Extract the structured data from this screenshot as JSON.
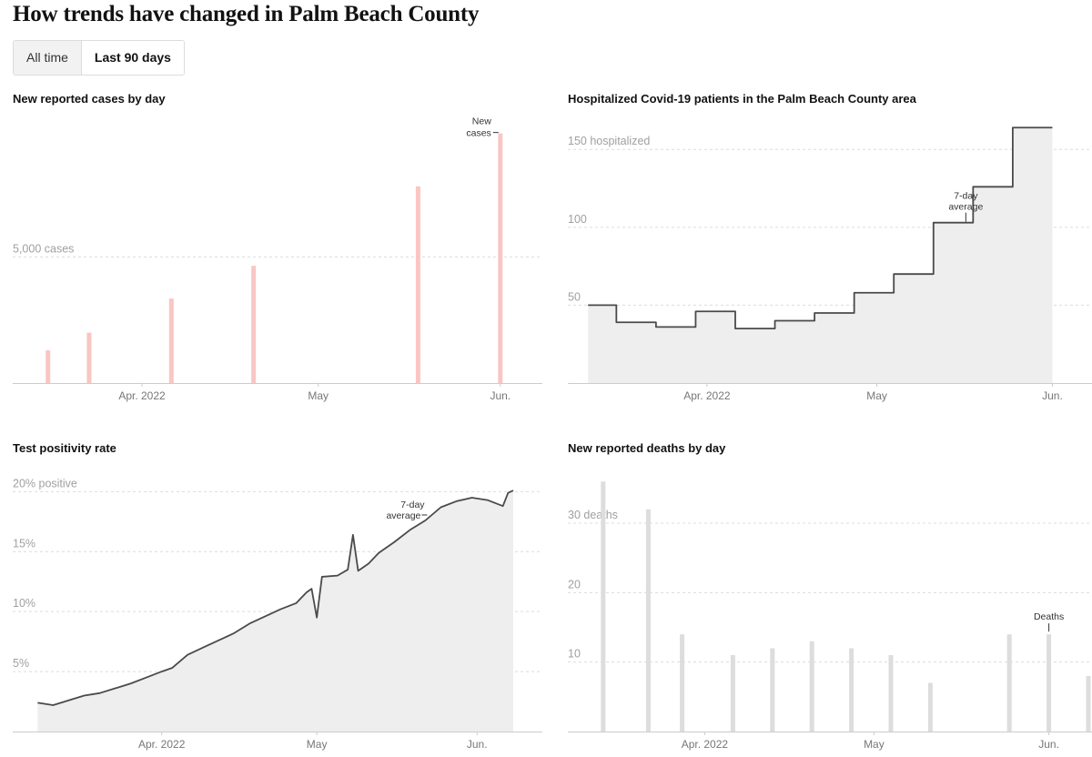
{
  "page": {
    "title": "How trends have changed in Palm Beach County",
    "toggle": {
      "all_time": "All time",
      "last_90": "Last 90 days",
      "selected": "last_90"
    }
  },
  "colors": {
    "cases_bar": "#f9c6c3",
    "line": "#4a4a4a",
    "area": "#eeeeee",
    "deaths_bar": "#dddddd",
    "grid": "#dcdcdc",
    "axis": "#cccccc"
  },
  "chart_data": [
    {
      "id": "cases",
      "type": "bar",
      "title": "New reported cases by day",
      "x_ticks": [
        {
          "label": "Apr. 2022",
          "x": "2022-04-01"
        },
        {
          "label": "May",
          "x": "2022-05-01"
        },
        {
          "label": "Jun.",
          "x": "2022-06-01"
        }
      ],
      "y_ticks": [
        {
          "value": 5000,
          "label": "5,000 cases"
        }
      ],
      "xlim": [
        "2022-03-10",
        "2022-06-08"
      ],
      "ylim": [
        0,
        10500
      ],
      "grid": "horizontal dashed",
      "series": [
        {
          "name": "New cases",
          "points": [
            {
              "x": "2022-03-16",
              "y": 1300
            },
            {
              "x": "2022-03-23",
              "y": 2000
            },
            {
              "x": "2022-04-06",
              "y": 3350
            },
            {
              "x": "2022-04-20",
              "y": 4650
            },
            {
              "x": "2022-05-18",
              "y": 7800
            },
            {
              "x": "2022-06-01",
              "y": 9900
            }
          ]
        }
      ],
      "annotation": {
        "lines": [
          "New",
          "cases"
        ],
        "target": "last bar"
      }
    },
    {
      "id": "hospitalized",
      "type": "area",
      "title": "Hospitalized Covid-19 patients in the Palm Beach County area",
      "x_ticks": [
        {
          "label": "Apr. 2022",
          "x": "2022-04-01"
        },
        {
          "label": "May",
          "x": "2022-05-01"
        },
        {
          "label": "Jun.",
          "x": "2022-06-01"
        }
      ],
      "y_ticks": [
        {
          "value": 50,
          "label": "50"
        },
        {
          "value": 100,
          "label": "100"
        },
        {
          "value": 150,
          "label": "150 hospitalized"
        }
      ],
      "xlim": [
        "2022-03-10",
        "2022-06-08"
      ],
      "ylim": [
        0,
        170
      ],
      "grid": "horizontal dashed",
      "step": true,
      "series": [
        {
          "name": "7-day average",
          "points": [
            {
              "x": "2022-03-11",
              "y": 50
            },
            {
              "x": "2022-03-16",
              "y": 39
            },
            {
              "x": "2022-03-23",
              "y": 36
            },
            {
              "x": "2022-03-30",
              "y": 46
            },
            {
              "x": "2022-04-06",
              "y": 35
            },
            {
              "x": "2022-04-13",
              "y": 40
            },
            {
              "x": "2022-04-20",
              "y": 45
            },
            {
              "x": "2022-04-27",
              "y": 58
            },
            {
              "x": "2022-05-04",
              "y": 70
            },
            {
              "x": "2022-05-11",
              "y": 103
            },
            {
              "x": "2022-05-18",
              "y": 126
            },
            {
              "x": "2022-05-25",
              "y": 164
            },
            {
              "x": "2022-06-01",
              "y": 164
            }
          ]
        }
      ],
      "annotation": {
        "lines": [
          "7-day",
          "average"
        ],
        "target": "2022-05-18"
      }
    },
    {
      "id": "positivity",
      "type": "area",
      "title": "Test positivity rate",
      "x_ticks": [
        {
          "label": "Apr. 2022",
          "x": "2022-04-01"
        },
        {
          "label": "May",
          "x": "2022-05-01"
        },
        {
          "label": "Jun.",
          "x": "2022-06-01"
        }
      ],
      "y_ticks": [
        {
          "value": 5,
          "label": "5%"
        },
        {
          "value": 10,
          "label": "10%"
        },
        {
          "value": 15,
          "label": "15%"
        },
        {
          "value": 20,
          "label": "20% positive"
        }
      ],
      "xlim": [
        "2022-03-06",
        "2022-06-08"
      ],
      "ylim": [
        0,
        22
      ],
      "grid": "horizontal dashed",
      "series": [
        {
          "name": "7-day average",
          "points": [
            {
              "x": "2022-03-08",
              "y": 2.4
            },
            {
              "x": "2022-03-11",
              "y": 2.2
            },
            {
              "x": "2022-03-14",
              "y": 2.6
            },
            {
              "x": "2022-03-17",
              "y": 3.0
            },
            {
              "x": "2022-03-20",
              "y": 3.2
            },
            {
              "x": "2022-03-23",
              "y": 3.6
            },
            {
              "x": "2022-03-26",
              "y": 4.0
            },
            {
              "x": "2022-03-29",
              "y": 4.5
            },
            {
              "x": "2022-04-01",
              "y": 5.0
            },
            {
              "x": "2022-04-03",
              "y": 5.3
            },
            {
              "x": "2022-04-06",
              "y": 6.4
            },
            {
              "x": "2022-04-09",
              "y": 7.0
            },
            {
              "x": "2022-04-12",
              "y": 7.6
            },
            {
              "x": "2022-04-15",
              "y": 8.2
            },
            {
              "x": "2022-04-18",
              "y": 9.0
            },
            {
              "x": "2022-04-21",
              "y": 9.6
            },
            {
              "x": "2022-04-24",
              "y": 10.2
            },
            {
              "x": "2022-04-27",
              "y": 10.7
            },
            {
              "x": "2022-04-29",
              "y": 11.6
            },
            {
              "x": "2022-04-30",
              "y": 11.9
            },
            {
              "x": "2022-05-01",
              "y": 9.5
            },
            {
              "x": "2022-05-02",
              "y": 12.9
            },
            {
              "x": "2022-05-05",
              "y": 13.0
            },
            {
              "x": "2022-05-07",
              "y": 13.5
            },
            {
              "x": "2022-05-08",
              "y": 16.4
            },
            {
              "x": "2022-05-09",
              "y": 13.4
            },
            {
              "x": "2022-05-11",
              "y": 14.0
            },
            {
              "x": "2022-05-13",
              "y": 14.9
            },
            {
              "x": "2022-05-16",
              "y": 15.8
            },
            {
              "x": "2022-05-19",
              "y": 16.8
            },
            {
              "x": "2022-05-22",
              "y": 17.6
            },
            {
              "x": "2022-05-25",
              "y": 18.7
            },
            {
              "x": "2022-05-28",
              "y": 19.2
            },
            {
              "x": "2022-05-31",
              "y": 19.5
            },
            {
              "x": "2022-06-03",
              "y": 19.3
            },
            {
              "x": "2022-06-06",
              "y": 18.8
            },
            {
              "x": "2022-06-07",
              "y": 19.9
            },
            {
              "x": "2022-06-08",
              "y": 20.1
            }
          ]
        }
      ],
      "annotation": {
        "lines": [
          "7-day",
          "average"
        ],
        "target": "2022-05-22"
      }
    },
    {
      "id": "deaths",
      "type": "bar",
      "title": "New reported deaths by day",
      "x_ticks": [
        {
          "label": "Apr. 2022",
          "x": "2022-04-01"
        },
        {
          "label": "May",
          "x": "2022-05-01"
        },
        {
          "label": "Jun.",
          "x": "2022-06-01"
        }
      ],
      "y_ticks": [
        {
          "value": 10,
          "label": "10"
        },
        {
          "value": 20,
          "label": "20"
        },
        {
          "value": 30,
          "label": "30 deaths"
        }
      ],
      "xlim": [
        "2022-03-10",
        "2022-06-08"
      ],
      "ylim": [
        0,
        38
      ],
      "grid": "horizontal dashed",
      "series": [
        {
          "name": "Deaths",
          "points": [
            {
              "x": "2022-03-14",
              "y": 36
            },
            {
              "x": "2022-03-22",
              "y": 32
            },
            {
              "x": "2022-03-28",
              "y": 14
            },
            {
              "x": "2022-04-06",
              "y": 11
            },
            {
              "x": "2022-04-13",
              "y": 12
            },
            {
              "x": "2022-04-20",
              "y": 13
            },
            {
              "x": "2022-04-27",
              "y": 12
            },
            {
              "x": "2022-05-04",
              "y": 11
            },
            {
              "x": "2022-05-11",
              "y": 7
            },
            {
              "x": "2022-05-25",
              "y": 14
            },
            {
              "x": "2022-06-01",
              "y": 14
            },
            {
              "x": "2022-06-08",
              "y": 8
            }
          ]
        }
      ],
      "annotation": {
        "lines": [
          "Deaths"
        ],
        "target": "2022-06-01"
      }
    }
  ]
}
